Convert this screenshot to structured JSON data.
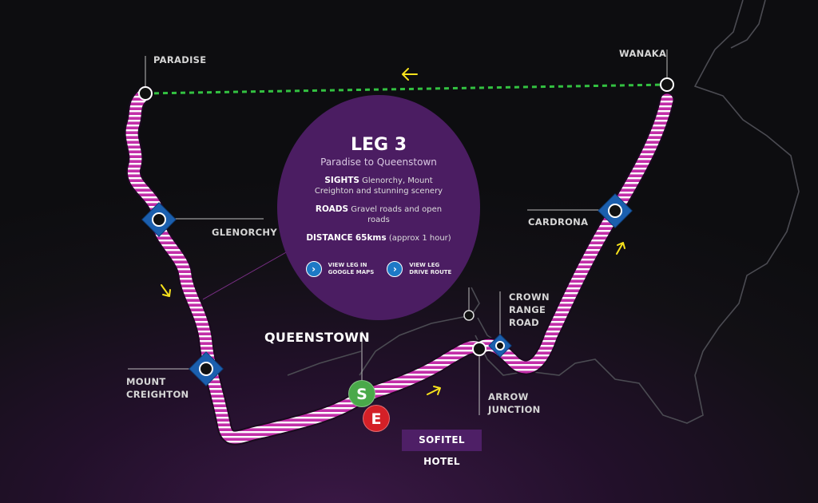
{
  "map": {
    "places": {
      "paradise": "PARADISE",
      "wanaka": "WANAKA",
      "glenorchy": "GLENORCHY",
      "cardrona": "CARDRONA",
      "mount_creighton": [
        "MOUNT",
        "CREIGHTON"
      ],
      "crown_range_road": [
        "CROWN",
        "RANGE",
        "ROAD"
      ],
      "arrow_junction": [
        "ARROW",
        "JUNCTION"
      ],
      "queenstown": "QUEENSTOWN"
    },
    "start_badge": "S",
    "end_badge": "E",
    "hotel_label": "SOFITEL HOTEL",
    "colors": {
      "route": "#c22ea8",
      "route_stripe": "#ffffff",
      "return_route": "#33c141",
      "marker_diamond": "#1b5fae",
      "start_badge": "#4aa94a",
      "end_badge": "#d42027",
      "direction_arrow": "#f7e21c",
      "info_circle": "#4b1d62"
    },
    "icons": [
      "direction-arrow-icon",
      "waypoint-diamond-icon",
      "waypoint-circle-icon",
      "chevron-right-icon"
    ]
  },
  "info": {
    "title": "LEG 3",
    "subtitle": "Paradise to Queenstown",
    "sights_label": "SIGHTS",
    "sights_text": "Glenorchy, Mount Creighton and stunning scenery",
    "roads_label": "ROADS",
    "roads_text": "Gravel roads and open roads",
    "distance_label": "DISTANCE",
    "distance_value": "65kms",
    "distance_note": "(approx 1 hour)",
    "link_maps": [
      "VIEW LEG IN",
      "GOOGLE MAPS"
    ],
    "link_route": [
      "VIEW LEG",
      "DRIVE ROUTE"
    ]
  }
}
